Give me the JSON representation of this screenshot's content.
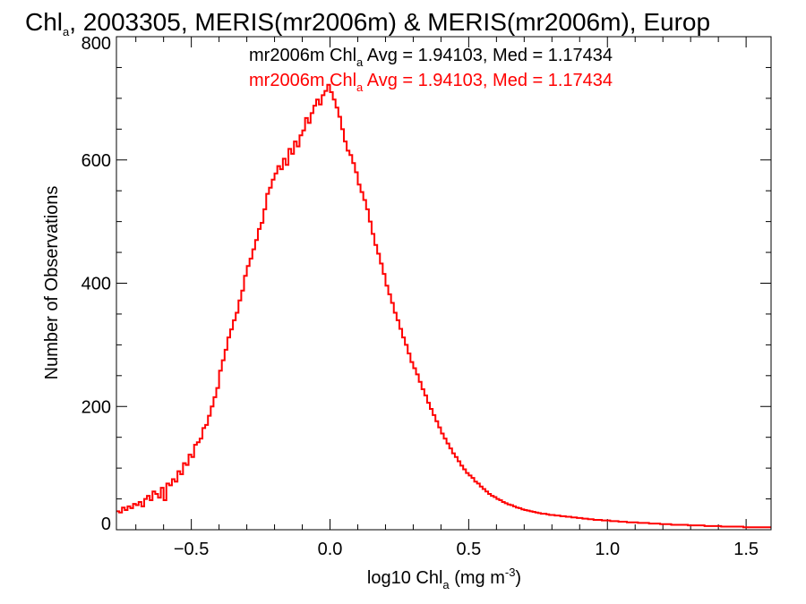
{
  "chart_data": {
    "type": "histogram",
    "title": {
      "pre": "Chl",
      "sub": "a",
      "post": ", 2003305, MERIS(mr2006m) & MERIS(mr2006m), Europ"
    },
    "xlabel": {
      "pre": "log10 Chl",
      "sub": "a",
      "post": " (mg m",
      "sup": "-3",
      "end": ")"
    },
    "ylabel": "Number of Observations",
    "xlim": [
      -0.77,
      1.59
    ],
    "ylim": [
      0,
      800
    ],
    "xticks": [
      -0.5,
      0.0,
      0.5,
      1.0,
      1.5
    ],
    "xtick_labels": [
      "−0.5",
      "0.0",
      "0.5",
      "1.0",
      "1.5"
    ],
    "yticks": [
      0,
      200,
      400,
      600,
      800
    ],
    "ytick_labels": [
      "0",
      "200",
      "400",
      "600",
      "800"
    ],
    "legend": [
      {
        "pre": "mr2006m Chl",
        "sub": "a",
        "post": " Avg = 1.94103, Med = 1.17434",
        "color": "#000000"
      },
      {
        "pre": "mr2006m Chl",
        "sub": "a",
        "post": " Avg = 1.94103, Med = 1.17434",
        "color": "#ff0000"
      }
    ],
    "series": [
      {
        "color": "#ff0000",
        "bin_start": -0.77,
        "bin_width": 0.01,
        "values": [
          30,
          28,
          36,
          32,
          38,
          35,
          42,
          40,
          45,
          38,
          50,
          55,
          48,
          62,
          58,
          52,
          68,
          48,
          75,
          72,
          82,
          78,
          95,
          90,
          108,
          105,
          122,
          118,
          138,
          142,
          148,
          165,
          170,
          185,
          200,
          215,
          230,
          258,
          275,
          292,
          312,
          325,
          340,
          352,
          372,
          388,
          412,
          428,
          440,
          455,
          470,
          488,
          498,
          520,
          545,
          555,
          568,
          578,
          590,
          585,
          602,
          592,
          618,
          610,
          630,
          622,
          640,
          648,
          668,
          660,
          676,
          688,
          698,
          690,
          705,
          712,
          722,
          710,
          698,
          685,
          670,
          650,
          630,
          615,
          608,
          595,
          580,
          560,
          548,
          535,
          520,
          500,
          480,
          462,
          448,
          432,
          415,
          396,
          382,
          368,
          352,
          340,
          326,
          312,
          300,
          286,
          272,
          262,
          252,
          240,
          228,
          218,
          206,
          196,
          186,
          176,
          166,
          156,
          148,
          140,
          132,
          124,
          118,
          111,
          104,
          98,
          92,
          88,
          84,
          78,
          75,
          70,
          66,
          62,
          58,
          55,
          53,
          50,
          48,
          45,
          43,
          41,
          40,
          38,
          36,
          35,
          33,
          32,
          31,
          30,
          29,
          28,
          27,
          26,
          26,
          25,
          24,
          24,
          23,
          23,
          22,
          22,
          21,
          21,
          20,
          20,
          19,
          19,
          18,
          18,
          17,
          17,
          16,
          16,
          16,
          15,
          15,
          15,
          14,
          14,
          14,
          13,
          13,
          13,
          12,
          12,
          12,
          12,
          11,
          11,
          11,
          11,
          10,
          10,
          10,
          10,
          9,
          9,
          9,
          9,
          8,
          8,
          8,
          8,
          8,
          8,
          7,
          7,
          7,
          7,
          7,
          7,
          6,
          6,
          6,
          6,
          6,
          6,
          5,
          5,
          5,
          5,
          5,
          5,
          5,
          5,
          4,
          4,
          4,
          4,
          4,
          4,
          4,
          4,
          4,
          4,
          4,
          4,
          4,
          4,
          4,
          4,
          4,
          4,
          4,
          4,
          4,
          4,
          4,
          4,
          4,
          4,
          4,
          4,
          4,
          4,
          4,
          4,
          4,
          4,
          4,
          4,
          4,
          4,
          4,
          4,
          4,
          4,
          4,
          4,
          4,
          4,
          4,
          4,
          4,
          4,
          4,
          4,
          4,
          4,
          4,
          4,
          4,
          4,
          4,
          4,
          4,
          4,
          4,
          4,
          4,
          4,
          4,
          4,
          4,
          4,
          4,
          4,
          4,
          4,
          4,
          4,
          4,
          4,
          4,
          4,
          4,
          4,
          4,
          4,
          4,
          4,
          4,
          4
        ]
      }
    ]
  }
}
